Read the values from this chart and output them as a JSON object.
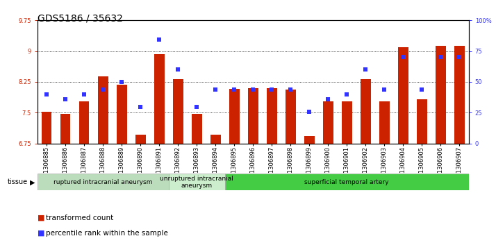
{
  "title": "GDS5186 / 35632",
  "samples": [
    "GSM1306885",
    "GSM1306886",
    "GSM1306887",
    "GSM1306888",
    "GSM1306889",
    "GSM1306890",
    "GSM1306891",
    "GSM1306892",
    "GSM1306893",
    "GSM1306894",
    "GSM1306895",
    "GSM1306896",
    "GSM1306897",
    "GSM1306898",
    "GSM1306899",
    "GSM1306900",
    "GSM1306901",
    "GSM1306902",
    "GSM1306903",
    "GSM1306904",
    "GSM1306905",
    "GSM1306906",
    "GSM1306907"
  ],
  "bar_values": [
    7.52,
    7.48,
    7.78,
    8.38,
    8.19,
    6.97,
    8.93,
    8.32,
    7.48,
    6.97,
    8.08,
    8.1,
    8.1,
    8.07,
    6.93,
    7.78,
    7.77,
    8.32,
    7.78,
    9.1,
    7.82,
    9.12,
    9.12
  ],
  "percentile_values": [
    40,
    36,
    40,
    44,
    50,
    30,
    84,
    60,
    30,
    44,
    44,
    44,
    44,
    44,
    26,
    36,
    40,
    60,
    44,
    70,
    44,
    70,
    70
  ],
  "ylim_left": [
    6.75,
    9.75
  ],
  "ylim_right": [
    0,
    100
  ],
  "yticks_left": [
    6.75,
    7.5,
    8.25,
    9.0,
    9.75
  ],
  "yticks_right": [
    0,
    25,
    50,
    75,
    100
  ],
  "ytick_labels_left": [
    "6.75",
    "7.5",
    "8.25",
    "9",
    "9.75"
  ],
  "ytick_labels_right": [
    "0",
    "25",
    "50",
    "75",
    "100%"
  ],
  "bar_color": "#cc2200",
  "dot_color": "#3333ff",
  "bg_color": "#ffffff",
  "tissue_groups": [
    {
      "label": "ruptured intracranial aneurysm",
      "start": 0,
      "end": 7,
      "color": "#bbddbb"
    },
    {
      "label": "unruptured intracranial\naneurysm",
      "start": 7,
      "end": 10,
      "color": "#cceecc"
    },
    {
      "label": "superficial temporal artery",
      "start": 10,
      "end": 23,
      "color": "#44cc44"
    }
  ],
  "legend_items": [
    {
      "label": "transformed count",
      "color": "#cc2200"
    },
    {
      "label": "percentile rank within the sample",
      "color": "#3333ff"
    }
  ],
  "tissue_label": "tissue",
  "bar_width": 0.55,
  "title_fontsize": 10,
  "tick_fontsize": 6,
  "label_fontsize": 7.5
}
